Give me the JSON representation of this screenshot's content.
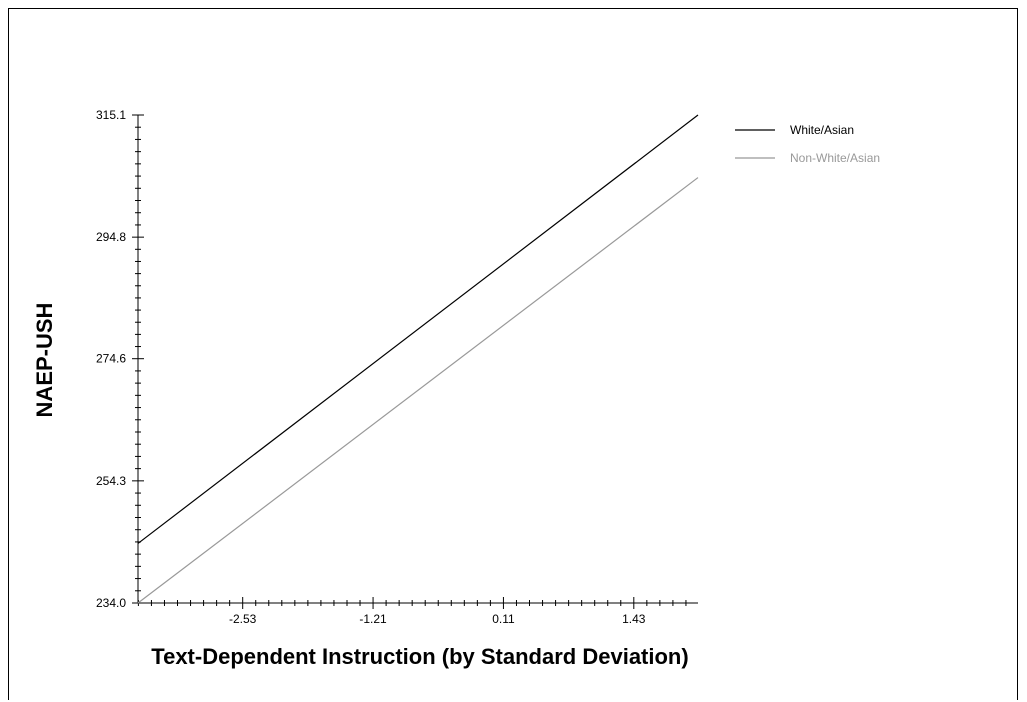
{
  "chart_data": {
    "type": "line",
    "xlabel": "Text-Dependent Instruction (by Standard Deviation)",
    "ylabel": "NAEP-USH",
    "x_ticks": [
      -2.53,
      -1.21,
      0.11,
      1.43
    ],
    "y_ticks": [
      234.0,
      254.3,
      274.6,
      294.8,
      315.1
    ],
    "y_tick_labels": [
      "234.0",
      "254.3",
      "274.6",
      "294.8",
      "315.1"
    ],
    "x_tick_labels": [
      "-2.53",
      "-1.21",
      "0.11",
      "1.43"
    ],
    "xlim": [
      -3.59,
      2.08
    ],
    "ylim": [
      234.0,
      315.1
    ],
    "grid": false,
    "legend_position": "top-right",
    "series": [
      {
        "name": "White/Asian",
        "color": "#000000",
        "x": [
          -3.59,
          2.08
        ],
        "y": [
          243.9,
          315.1
        ]
      },
      {
        "name": "Non-White/Asian",
        "color": "#999999",
        "x": [
          -3.59,
          2.08
        ],
        "y": [
          234.0,
          304.7
        ]
      }
    ]
  }
}
